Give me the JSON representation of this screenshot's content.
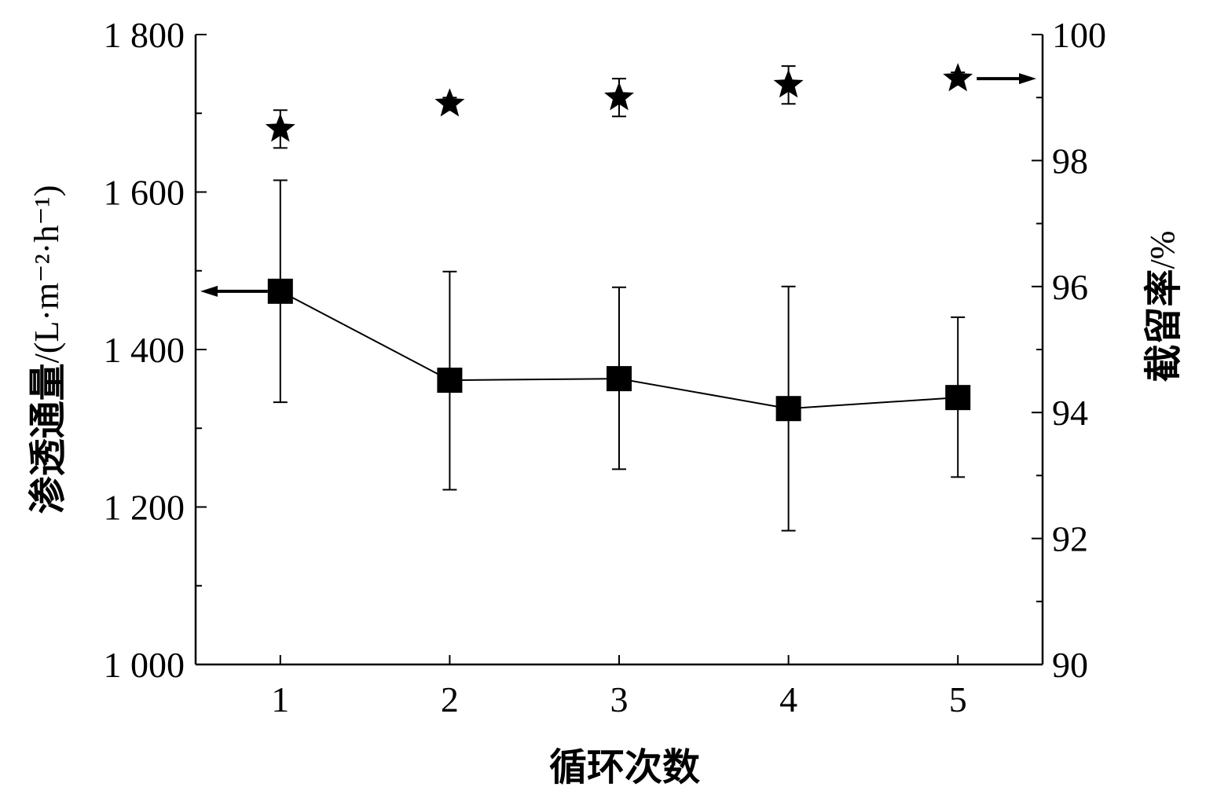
{
  "chart_data": {
    "type": "line",
    "x_axis": {
      "label": "循环次数",
      "range": [
        0.5,
        5.5
      ],
      "ticks": [
        1,
        2,
        3,
        4,
        5
      ],
      "tick_labels": [
        "1",
        "2",
        "3",
        "4",
        "5"
      ]
    },
    "y_left_axis": {
      "label_main": "渗透通量",
      "label_unit": "/(L·m⁻²·h⁻¹)",
      "range": [
        1000,
        1800
      ],
      "major_ticks": [
        1000,
        1200,
        1400,
        1600,
        1800
      ],
      "tick_labels": [
        "1 000",
        "1 200",
        "1 400",
        "1 600",
        "1 800"
      ],
      "minor_ticks": [
        1100,
        1300,
        1500,
        1700
      ]
    },
    "y_right_axis": {
      "label_main": "截留率",
      "label_unit": "/%",
      "range": [
        90,
        100
      ],
      "major_ticks": [
        90,
        92,
        94,
        96,
        98,
        100
      ],
      "tick_labels": [
        "90",
        "92",
        "94",
        "96",
        "98",
        "100"
      ],
      "minor_ticks": [
        91,
        93,
        95,
        97,
        99
      ]
    },
    "series": [
      {
        "axis": "left",
        "marker": "square",
        "connected": true,
        "x": [
          1,
          2,
          3,
          4,
          5
        ],
        "y": [
          1474,
          1361,
          1363,
          1325,
          1339
        ],
        "err_low": [
          1333,
          1222,
          1248,
          1170,
          1238
        ],
        "err_high": [
          1615,
          1499,
          1479,
          1480,
          1441
        ]
      },
      {
        "axis": "right",
        "marker": "star",
        "connected": false,
        "x": [
          1,
          2,
          3,
          4,
          5
        ],
        "y": [
          98.5,
          98.9,
          99.0,
          99.2,
          99.3
        ],
        "err_low": [
          98.2,
          98.8,
          98.7,
          98.9,
          99.2
        ],
        "err_high": [
          98.8,
          99.0,
          99.3,
          99.5,
          99.4
        ]
      }
    ],
    "annotations": [
      {
        "type": "arrow",
        "points_to": "left-axis",
        "series": 0
      },
      {
        "type": "arrow",
        "points_to": "right-axis",
        "series": 1
      }
    ],
    "grid": false,
    "legend": "none"
  }
}
